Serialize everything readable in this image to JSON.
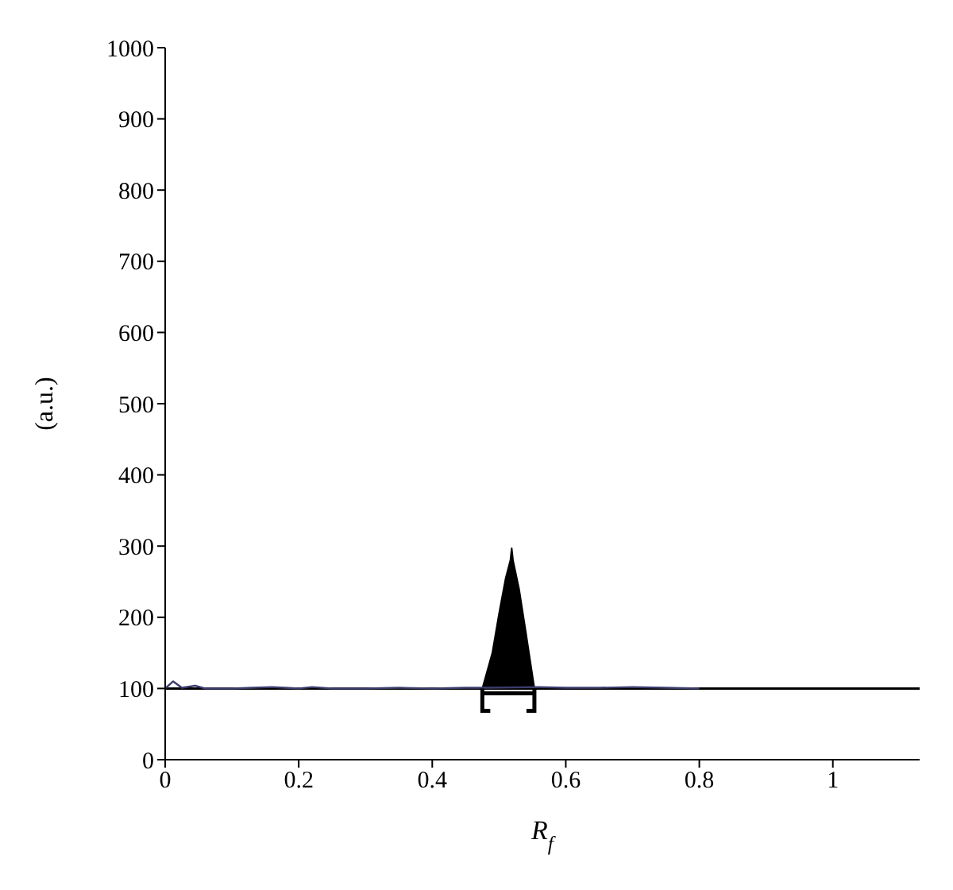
{
  "chart_data": {
    "type": "line",
    "xlabel": "R$_{f}$",
    "ylabel": "(a.u.)",
    "xlim": [
      0,
      1.13
    ],
    "xticks": [
      0,
      0.2,
      0.4,
      0.6,
      0.8,
      1
    ],
    "ylim": [
      0,
      1000
    ],
    "yticks": [
      0,
      100,
      200,
      300,
      400,
      500,
      600,
      700,
      800,
      900,
      1000
    ],
    "marker": "none",
    "line_style": "solid",
    "ref_lines": [
      {
        "axis": "y",
        "value": 100,
        "color": "#000000"
      }
    ],
    "series": [
      {
        "color": "#3b3b6e",
        "x": [
          0,
          0.012,
          0.025,
          0.045,
          0.06,
          0.1,
          0.13,
          0.16,
          0.18,
          0.2,
          0.22,
          0.25,
          0.3,
          0.35,
          0.4,
          0.45,
          0.475,
          0.56,
          0.6,
          0.65,
          0.7,
          0.75,
          0.8
        ],
        "values": [
          100,
          110,
          101,
          104,
          100,
          100,
          101,
          102,
          101,
          100,
          102,
          100,
          100,
          101,
          100,
          101,
          101,
          102,
          101,
          101,
          102,
          101,
          100
        ]
      },
      {
        "type": "area",
        "color": "#000000",
        "x": [
          0.475,
          0.49,
          0.5,
          0.51,
          0.517,
          0.519,
          0.521,
          0.53,
          0.54,
          0.553
        ],
        "values": [
          100,
          150,
          205,
          255,
          280,
          297,
          280,
          240,
          180,
          100
        ]
      }
    ]
  }
}
